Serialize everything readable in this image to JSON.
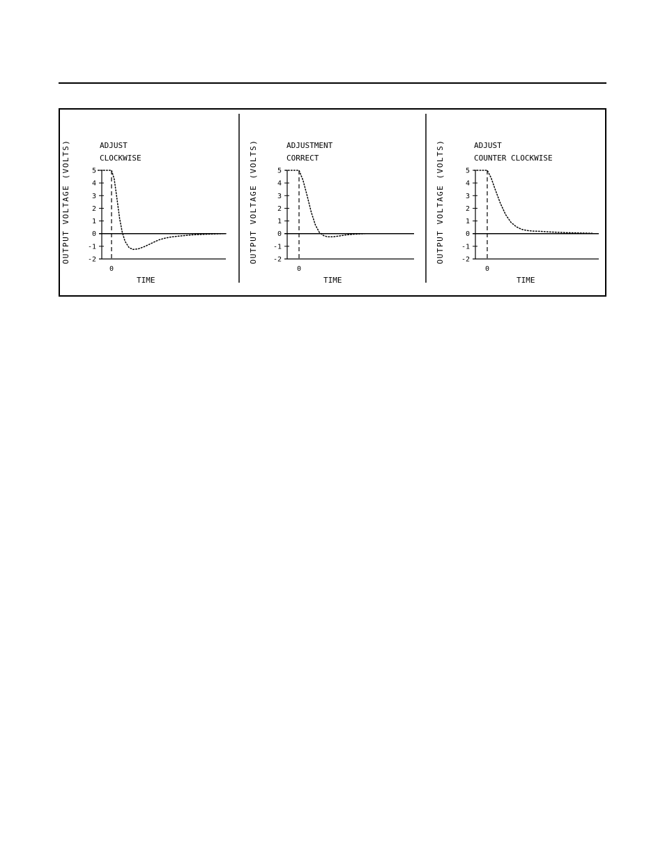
{
  "chart_data": [
    {
      "type": "line",
      "annotation": [
        "ADJUST",
        "CLOCKWISE"
      ],
      "xlabel": "TIME",
      "ylabel": "OUTPUT VOLTAGE (VOLTS)",
      "ylim": [
        -2,
        5
      ],
      "yticks": [
        "5",
        "4",
        "3",
        "2",
        "1",
        "0",
        "-1",
        "-2"
      ],
      "xticks": [
        "0"
      ],
      "series": [
        {
          "x": [
            -1.0,
            0,
            0.2,
            0.4,
            0.6,
            0.8,
            1.0,
            1.3,
            1.6,
            2.0,
            2.5,
            3.0,
            3.5,
            4.0,
            4.5,
            5.0,
            6.0,
            7.0,
            8.5
          ],
          "y": [
            5,
            5,
            4.3,
            2.8,
            1.2,
            0.1,
            -0.6,
            -1.1,
            -1.25,
            -1.2,
            -1.0,
            -0.75,
            -0.5,
            -0.35,
            -0.25,
            -0.2,
            -0.1,
            -0.05,
            0
          ]
        }
      ]
    },
    {
      "type": "line",
      "annotation": [
        "ADJUSTMENT",
        "CORRECT"
      ],
      "xlabel": "TIME",
      "ylabel": "OUTPUT VOLTAGE (VOLTS)",
      "ylim": [
        -2,
        5
      ],
      "yticks": [
        "5",
        "4",
        "3",
        "2",
        "1",
        "0",
        "-1",
        "-2"
      ],
      "xticks": [
        "0"
      ],
      "series": [
        {
          "x": [
            -1.0,
            0,
            0.3,
            0.6,
            0.9,
            1.2,
            1.5,
            1.8,
            2.1,
            2.5,
            3.0,
            3.5,
            4.0,
            5.0,
            6.0,
            7.0,
            8.5
          ],
          "y": [
            5,
            5,
            4.2,
            3.0,
            1.7,
            0.7,
            0.1,
            -0.15,
            -0.25,
            -0.25,
            -0.18,
            -0.1,
            -0.05,
            0,
            0,
            0,
            0
          ]
        }
      ]
    },
    {
      "type": "line",
      "annotation": [
        "ADJUST",
        "COUNTER CLOCKWISE"
      ],
      "xlabel": "TIME",
      "ylabel": "OUTPUT VOLTAGE (VOLTS)",
      "ylim": [
        -2,
        5
      ],
      "yticks": [
        "5",
        "4",
        "3",
        "2",
        "1",
        "0",
        "-1",
        "-2"
      ],
      "xticks": [
        "0"
      ],
      "series": [
        {
          "x": [
            -1.0,
            0,
            0.3,
            0.6,
            1.0,
            1.4,
            1.8,
            2.2,
            2.6,
            3.0,
            3.5,
            4.0,
            5.0,
            6.0,
            7.0,
            8.0
          ],
          "y": [
            5,
            5,
            4.4,
            3.5,
            2.4,
            1.5,
            0.9,
            0.55,
            0.35,
            0.25,
            0.2,
            0.18,
            0.12,
            0.08,
            0.05,
            0.03
          ]
        }
      ]
    }
  ]
}
